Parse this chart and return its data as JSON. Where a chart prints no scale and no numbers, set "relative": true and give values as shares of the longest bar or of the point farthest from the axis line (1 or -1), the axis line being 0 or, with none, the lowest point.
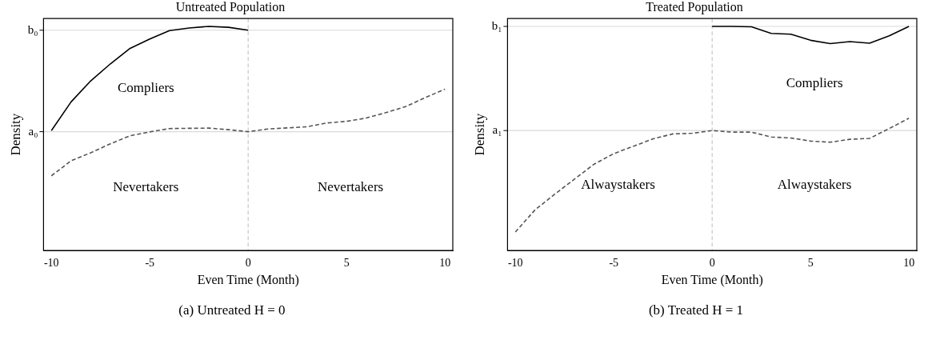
{
  "chart_data": [
    {
      "type": "line",
      "title": "Untreated Population",
      "xlabel": "Even Time (Month)",
      "ylabel": "Density",
      "relative": true,
      "xlim": [
        -10.4,
        10.4
      ],
      "xticks": [
        -10,
        -5,
        0,
        5,
        10
      ],
      "grid": false,
      "legend": false,
      "marker": "none",
      "series": [
        {
          "color": "#000000",
          "line_style": "solid",
          "x": [
            -10,
            -9,
            -8,
            -7,
            -6,
            -5,
            -4,
            -3,
            -2,
            -1,
            0
          ],
          "values": [
            0.535,
            0.663,
            0.757,
            0.833,
            0.902,
            0.944,
            0.981,
            0.993,
            1,
            0.996,
            0.983
          ]
        },
        {
          "color": "#555555",
          "line_style": "dashed",
          "x": [
            -10,
            -9,
            -8,
            -7,
            -6,
            -5,
            -4,
            -3,
            -2,
            -1,
            0,
            1,
            2,
            3,
            4,
            5,
            6,
            7,
            8,
            9,
            10
          ],
          "values": [
            0.333,
            0.4,
            0.436,
            0.476,
            0.512,
            0.529,
            0.544,
            0.545,
            0.546,
            0.539,
            0.53,
            0.542,
            0.547,
            0.552,
            0.569,
            0.576,
            0.591,
            0.615,
            0.642,
            0.682,
            0.72
          ]
        }
      ],
      "ref_lines": [
        {
          "axis": "y",
          "value": 0.983,
          "label": "b₀",
          "color": "#d9d9d9",
          "line_style": "solid"
        },
        {
          "axis": "y",
          "value": 0.53,
          "label": "a₀",
          "color": "#d9d9d9",
          "line_style": "solid"
        },
        {
          "axis": "x",
          "value": 0,
          "color": "#c8c8c8",
          "line_style": "dashed"
        }
      ],
      "annotations": [
        "Compliers",
        "Nevertakers",
        "Nevertakers",
        "(a) Untreated H = 0"
      ]
    },
    {
      "type": "line",
      "title": "Treated Population",
      "xlabel": "Even Time (Month)",
      "ylabel": "Density",
      "relative": true,
      "xlim": [
        -10.4,
        10.4
      ],
      "xticks": [
        -10,
        -5,
        0,
        5,
        10
      ],
      "grid": false,
      "legend": false,
      "marker": "none",
      "series": [
        {
          "color": "#000000",
          "line_style": "solid",
          "x": [
            0,
            1,
            2,
            3,
            4,
            5,
            6,
            7,
            8,
            9,
            10
          ],
          "values": [
            1,
            1,
            0.998,
            0.969,
            0.965,
            0.938,
            0.923,
            0.932,
            0.925,
            0.958,
            1
          ]
        },
        {
          "color": "#555555",
          "line_style": "dashed",
          "x": [
            -10,
            -9,
            -8,
            -7,
            -6,
            -5,
            -4,
            -3,
            -2,
            -1,
            0,
            1,
            2,
            3,
            4,
            5,
            6,
            7,
            8,
            9,
            10
          ],
          "values": [
            0.082,
            0.181,
            0.251,
            0.318,
            0.385,
            0.432,
            0.465,
            0.498,
            0.52,
            0.523,
            0.535,
            0.528,
            0.528,
            0.506,
            0.502,
            0.488,
            0.483,
            0.496,
            0.5,
            0.544,
            0.59
          ]
        }
      ],
      "ref_lines": [
        {
          "axis": "y",
          "value": 1,
          "label": "b₁",
          "color": "#d9d9d9",
          "line_style": "solid"
        },
        {
          "axis": "y",
          "value": 0.535,
          "label": "a₁",
          "color": "#d9d9d9",
          "line_style": "solid"
        },
        {
          "axis": "x",
          "value": 0,
          "color": "#c8c8c8",
          "line_style": "dashed"
        }
      ],
      "annotations": [
        "Compliers",
        "Alwaystakers",
        "Alwaystakers",
        "(b) Treated H = 1"
      ]
    }
  ]
}
